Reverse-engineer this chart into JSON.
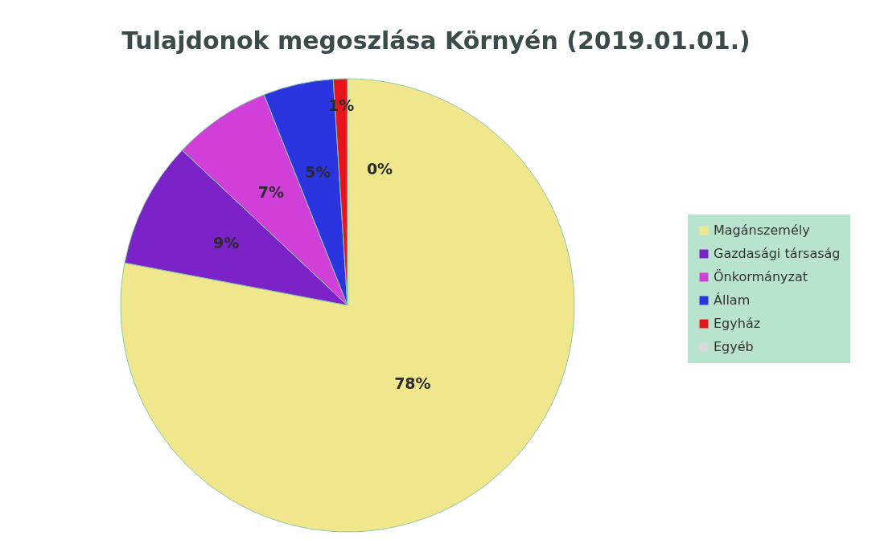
{
  "chart_data": {
    "type": "pie",
    "title": "Tulajdonok megoszlása Környén (2019.01.01.)",
    "categories": [
      "Magánszemély",
      "Gazdasági társaság",
      "Önkormányzat",
      "Állam",
      "Egyház",
      "Egyéb"
    ],
    "values": [
      78,
      9,
      7,
      5,
      1,
      0
    ],
    "colors": [
      "#f0e68c",
      "#7b22c8",
      "#d040d8",
      "#2a35e0",
      "#e8141c",
      "#d9d9d9"
    ],
    "value_labels": [
      "78%",
      "9%",
      "7%",
      "5%",
      "1%",
      "0%"
    ],
    "legend": "right"
  }
}
